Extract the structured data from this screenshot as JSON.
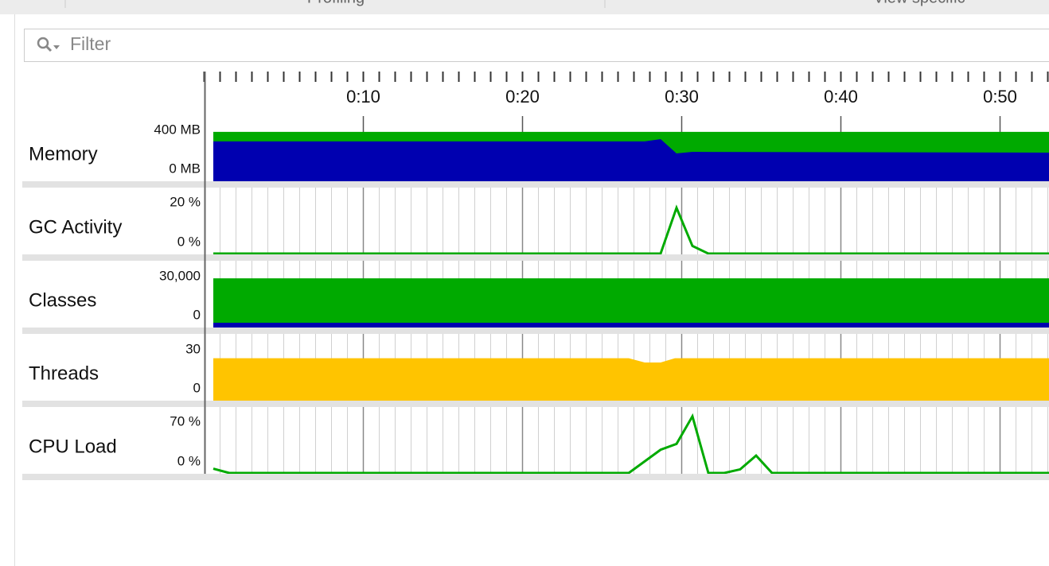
{
  "header": {
    "tabs": [
      "Profiling",
      "View specific"
    ]
  },
  "filter": {
    "placeholder": "Filter"
  },
  "timeline": {
    "xlim": [
      0,
      53.1
    ],
    "xticks": [
      {
        "value": 10,
        "label": "0:10"
      },
      {
        "value": 20,
        "label": "0:20"
      },
      {
        "value": 30,
        "label": "0:30"
      },
      {
        "value": 40,
        "label": "0:40"
      },
      {
        "value": 50,
        "label": "0:50"
      }
    ],
    "minor_xticks": [
      0,
      1,
      2,
      3,
      4,
      5,
      6,
      7,
      8,
      9,
      10,
      11,
      12,
      13,
      14,
      15,
      16,
      17,
      18,
      19,
      20,
      21,
      22,
      23,
      24,
      25,
      26,
      27,
      28,
      29,
      30,
      31,
      32,
      33,
      34,
      35,
      36,
      37,
      38,
      39,
      40,
      41,
      42,
      43,
      44,
      45,
      46,
      47,
      48,
      49,
      50,
      51,
      52,
      53
    ]
  },
  "panels": [
    {
      "label": "Memory",
      "type": "area",
      "ylim": [
        0,
        400
      ],
      "yticks": [
        {
          "value": 0,
          "label": "0 MB"
        },
        {
          "value": 400,
          "label": "400 MB"
        }
      ],
      "x": [
        0.6,
        27.7,
        28.7,
        29.7,
        30.7,
        53.1
      ],
      "series": [
        {
          "color": "#00aa00",
          "values": [
            388,
            388,
            388,
            388,
            388,
            388
          ]
        },
        {
          "color": "#0000b0",
          "values": [
            313,
            313,
            331,
            219,
            231,
            225
          ]
        }
      ]
    },
    {
      "label": "GC Activity",
      "type": "line",
      "ylim": [
        0,
        20
      ],
      "yticks": [
        {
          "value": 0,
          "label": "0 %"
        },
        {
          "value": 20,
          "label": "20 %"
        }
      ],
      "x": [
        0.6,
        28.7,
        29.7,
        30.7,
        31.7,
        53.1
      ],
      "series": [
        {
          "color": "#00aa00",
          "values": [
            0,
            0,
            18,
            3,
            0,
            0
          ]
        }
      ]
    },
    {
      "label": "Classes",
      "type": "area",
      "ylim": [
        0,
        30000
      ],
      "yticks": [
        0,
        {
          "value": 30000,
          "label": "30,000"
        }
      ],
      "x": [
        0.6,
        53.1
      ],
      "series": [
        {
          "color": "#00aa00",
          "values": [
            29000,
            29000
          ]
        },
        {
          "color": "#0000b0",
          "values": [
            2800,
            2800
          ]
        }
      ]
    },
    {
      "label": "Threads",
      "type": "area",
      "ylim": [
        0,
        30
      ],
      "yticks": [
        0,
        30
      ],
      "x": [
        0.6,
        26.7,
        27.7,
        28.7,
        29.6,
        53.1
      ],
      "series": [
        {
          "color": "#ffc400",
          "values": [
            25,
            25,
            22.5,
            22.5,
            25,
            25
          ]
        }
      ]
    },
    {
      "label": "CPU Load",
      "type": "line",
      "ylim": [
        0,
        70
      ],
      "yticks": [
        {
          "value": 0,
          "label": "0 %"
        },
        {
          "value": 70,
          "label": "70 %"
        }
      ],
      "x": [
        0.6,
        1.6,
        26.7,
        27.7,
        28.7,
        29.7,
        30.7,
        31.7,
        32.7,
        33.7,
        34.7,
        35.7,
        53.1
      ],
      "series": [
        {
          "color": "#00aa00",
          "values": [
            6,
            0,
            0,
            16,
            32,
            40,
            78,
            0,
            0,
            5,
            24,
            0,
            0
          ]
        }
      ]
    }
  ]
}
